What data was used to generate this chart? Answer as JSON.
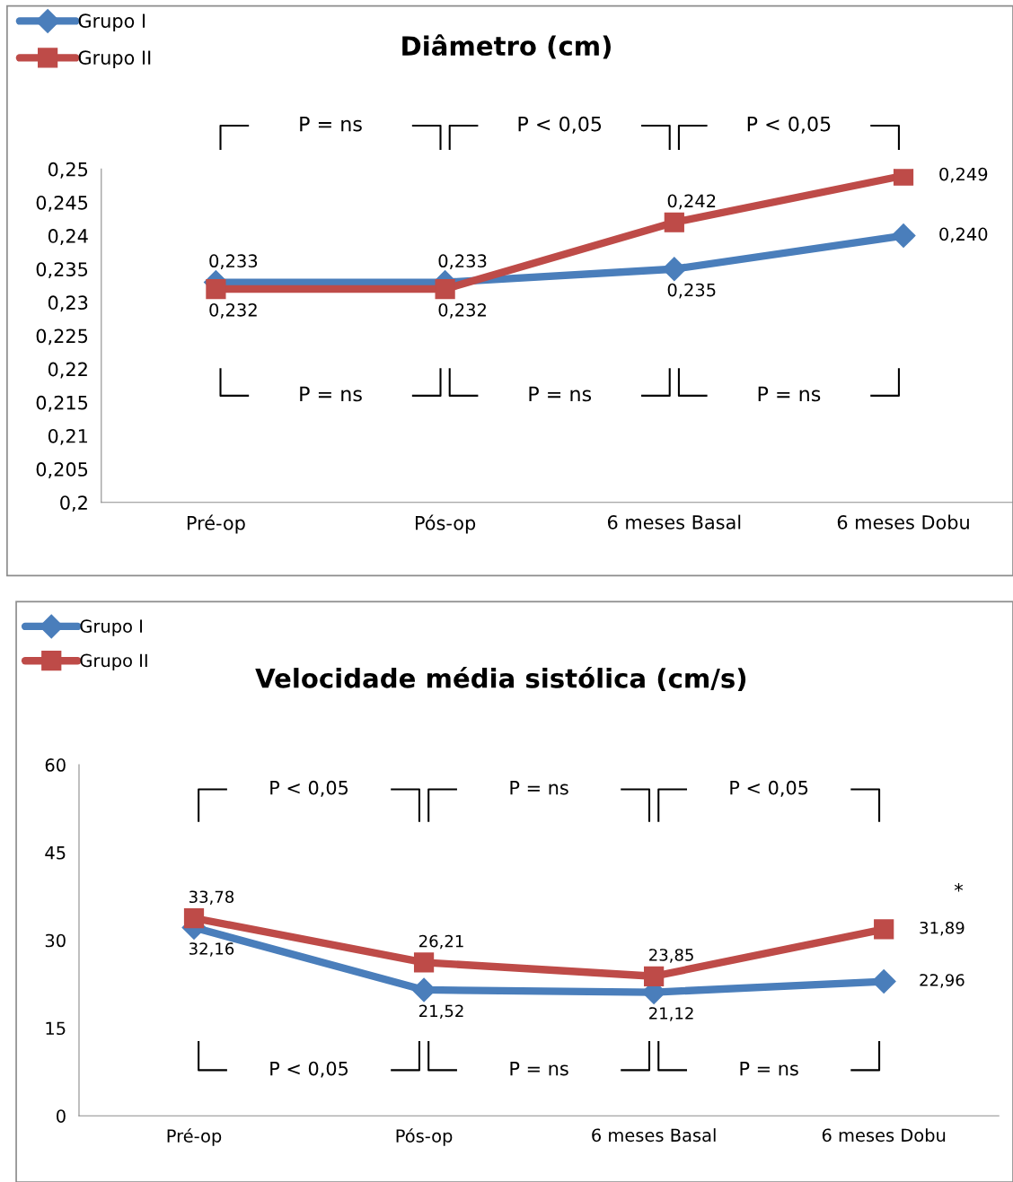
{
  "chart_data": [
    {
      "type": "line",
      "title": "Diâmetro (cm)",
      "categories": [
        "Pré-op",
        "Pós-op",
        "6 meses Basal",
        "6 meses Dobu"
      ],
      "series": [
        {
          "name": "Grupo I",
          "color": "#4a7ebb",
          "marker": "diamond",
          "values": [
            0.233,
            0.233,
            0.235,
            0.24
          ],
          "value_labels": [
            "0,233",
            "0,233",
            "0,235",
            "0,240"
          ]
        },
        {
          "name": "Grupo II",
          "color": "#be4b48",
          "marker": "square",
          "values": [
            0.232,
            0.232,
            0.242,
            0.249
          ],
          "value_labels": [
            "0,232",
            "0,232",
            "0,242",
            "0,249"
          ]
        }
      ],
      "ylim": [
        0.2,
        0.25
      ],
      "yticks": [
        {
          "value": 0.2,
          "label": "0,2"
        },
        {
          "value": 0.205,
          "label": "0,205"
        },
        {
          "value": 0.21,
          "label": "0,21"
        },
        {
          "value": 0.215,
          "label": "0,215"
        },
        {
          "value": 0.22,
          "label": "0,22"
        },
        {
          "value": 0.225,
          "label": "0,225"
        },
        {
          "value": 0.23,
          "label": "0,23"
        },
        {
          "value": 0.235,
          "label": "0,235"
        },
        {
          "value": 0.24,
          "label": "0,24"
        },
        {
          "value": 0.245,
          "label": "0,245"
        },
        {
          "value": 0.25,
          "label": "0,25"
        }
      ],
      "grid": false,
      "legend": "top left",
      "line_style": "solid",
      "annotations": [
        "P = ns",
        "P < 0,05",
        "P < 0,05",
        "P = ns",
        "P = ns",
        "P = ns"
      ]
    },
    {
      "type": "line",
      "title": "Velocidade média sistólica (cm/s)",
      "categories": [
        "Pré-op",
        "Pós-op",
        "6 meses Basal",
        "6 meses Dobu"
      ],
      "series": [
        {
          "name": "Grupo I",
          "color": "#4a7ebb",
          "marker": "diamond",
          "values": [
            32.16,
            21.52,
            21.12,
            22.96
          ],
          "value_labels": [
            "32,16",
            "21,52",
            "21,12",
            "22,96"
          ]
        },
        {
          "name": "Grupo II",
          "color": "#be4b48",
          "marker": "square",
          "values": [
            33.78,
            26.21,
            23.85,
            31.89
          ],
          "value_labels": [
            "33,78",
            "26,21",
            "23,85",
            "31,89"
          ]
        }
      ],
      "ylim": [
        0,
        60
      ],
      "yticks": [
        0,
        15,
        30,
        45,
        60
      ],
      "grid": false,
      "legend": "top left",
      "line_style": "solid",
      "annotations": [
        "P < 0,05",
        "P = ns",
        "P < 0,05",
        "P < 0,05",
        "P = ns",
        "P = ns",
        "*"
      ]
    }
  ]
}
